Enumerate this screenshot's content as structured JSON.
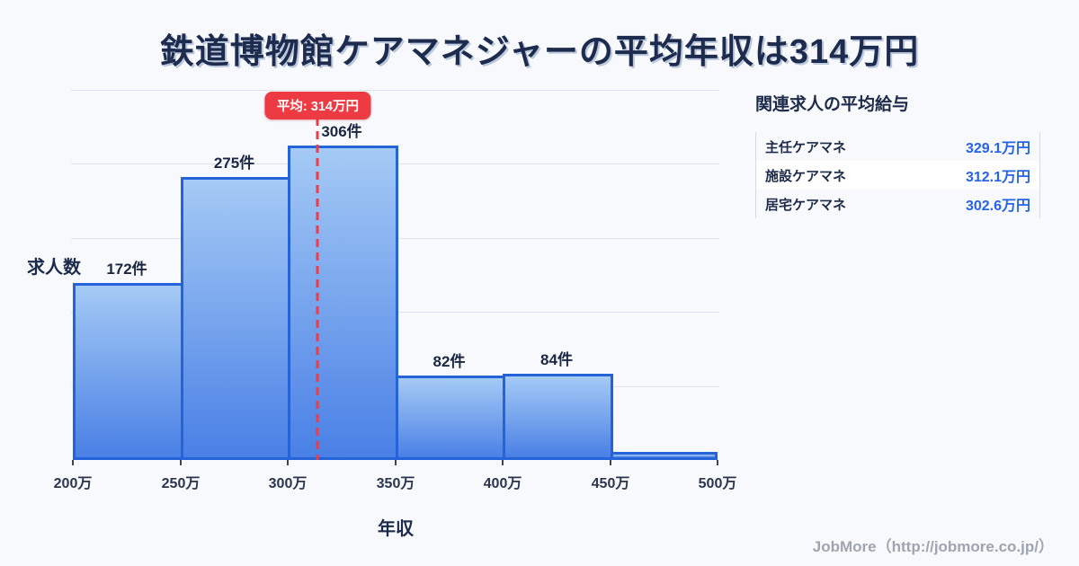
{
  "page": {
    "title": "鉄道博物館ケアマネジャーの平均年収は314万円",
    "footer": "JobMore（http://jobmore.co.jp/）"
  },
  "chart_data": {
    "type": "bar",
    "title": "鉄道博物館ケアマネジャーの平均年収は314万円",
    "xlabel": "年収",
    "ylabel": "求人数",
    "bin_edges": [
      200,
      250,
      300,
      350,
      400,
      450,
      500
    ],
    "x_tick_labels": [
      "200万",
      "250万",
      "300万",
      "350万",
      "400万",
      "450万",
      "500万"
    ],
    "values": [
      172,
      275,
      306,
      82,
      84,
      8
    ],
    "bar_labels": [
      "172件",
      "275件",
      "306件",
      "82件",
      "84件",
      ""
    ],
    "xlim": [
      200,
      500
    ],
    "ylim": [
      0,
      360
    ],
    "grid": "horizontal",
    "legend": "none",
    "average": {
      "label": "平均: 314万円",
      "value": 314
    }
  },
  "side_panel": {
    "heading": "関連求人の平均給与",
    "rows": [
      {
        "label": "主任ケアマネ",
        "value": "329.1万円"
      },
      {
        "label": "施設ケアマネ",
        "value": "312.1万円"
      },
      {
        "label": "居宅ケアマネ",
        "value": "302.6万円"
      }
    ]
  },
  "colors": {
    "background": "#f8f9fc",
    "title_navy": "#1d2c4e",
    "bar_border": "#2563d8",
    "bar_fill_top": "#a5caf5",
    "bar_fill_bottom": "#4a80e6",
    "accent_red": "#ee3b43",
    "value_blue": "#2563eb",
    "grid_gray": "#dde3ee"
  }
}
